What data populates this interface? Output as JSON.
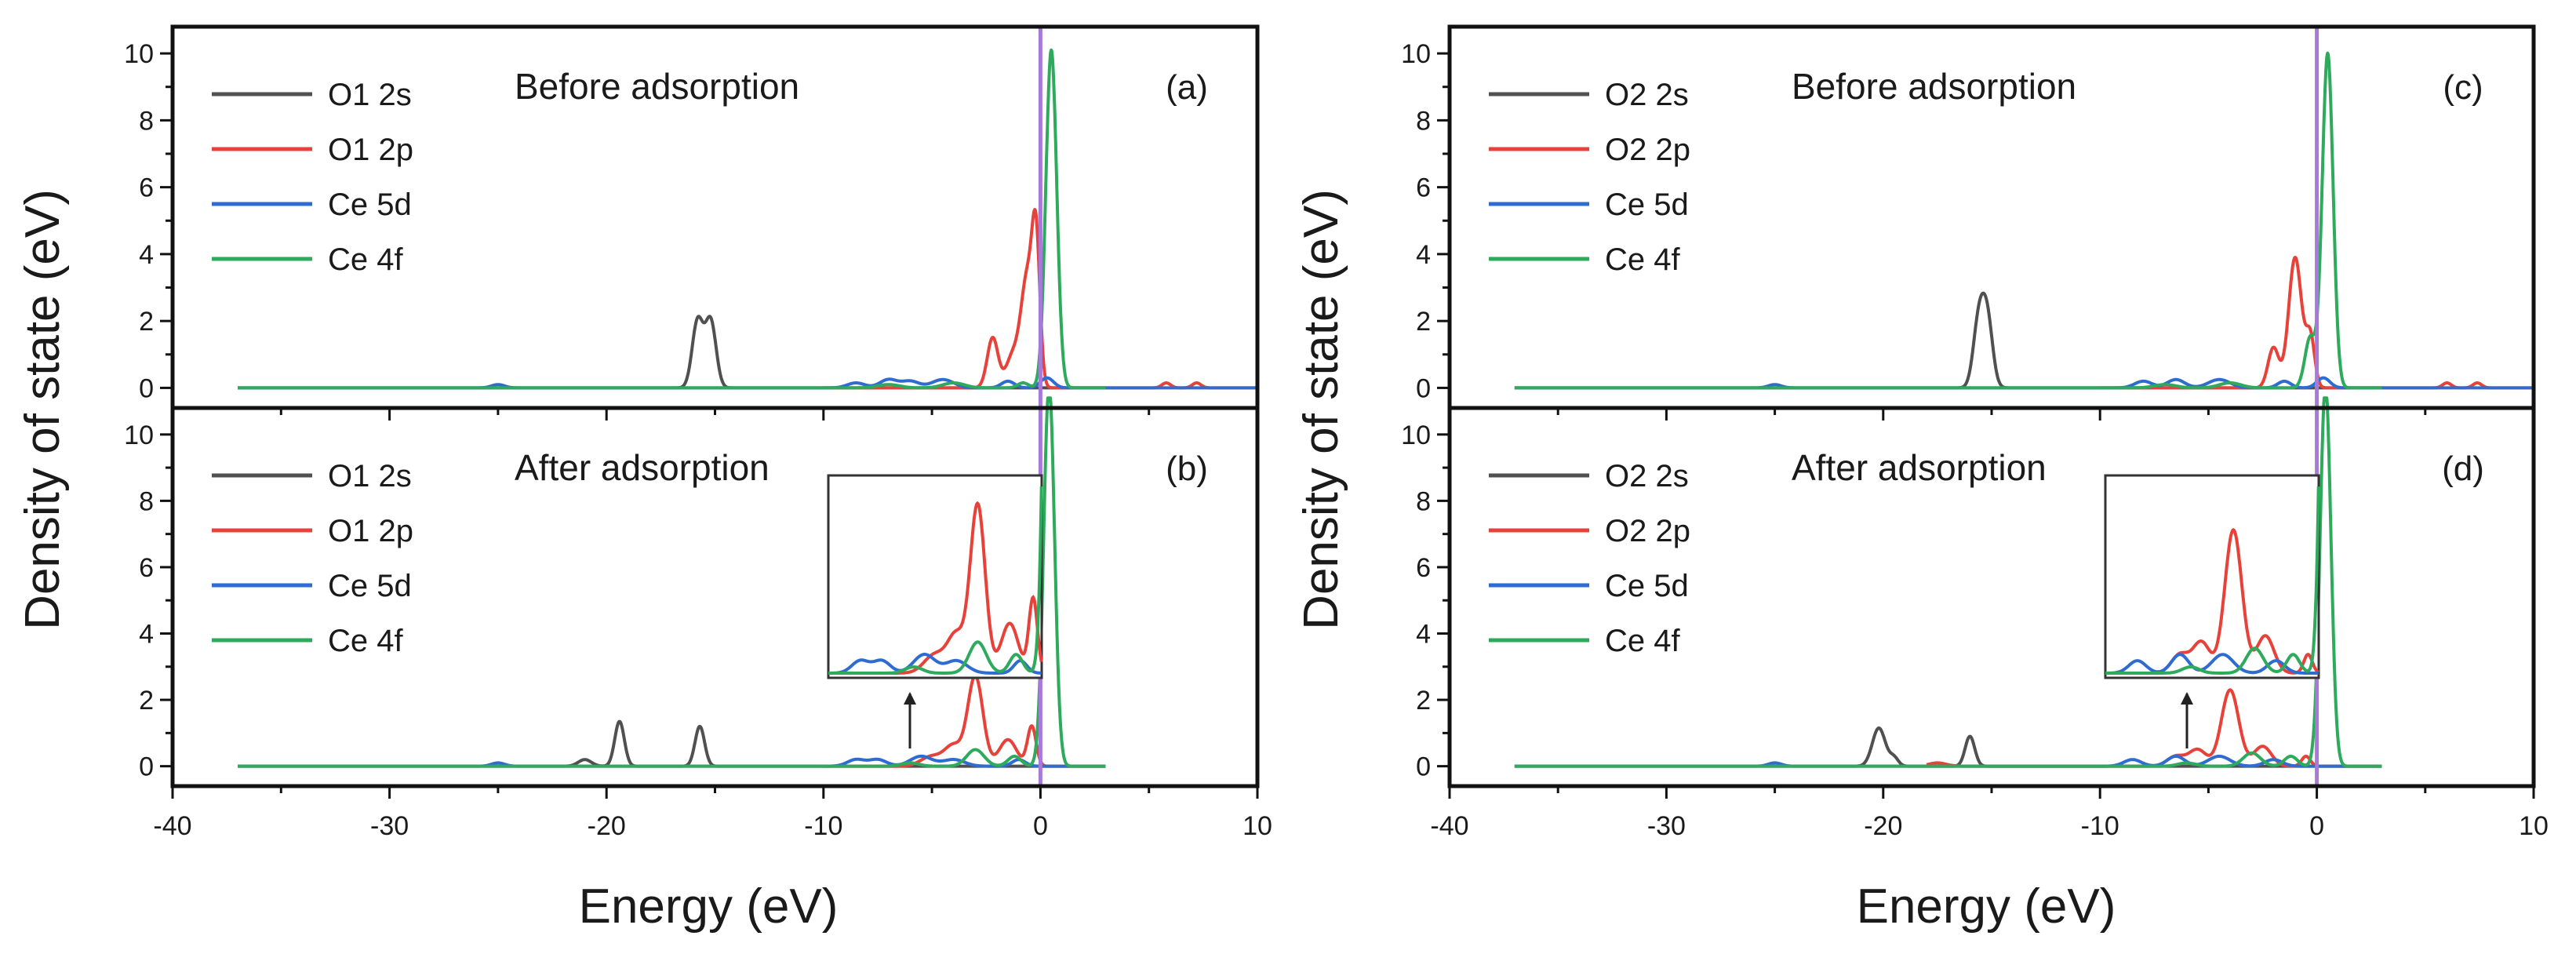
{
  "figure": {
    "xlabel_left": "Energy (eV)",
    "xlabel_right": "Energy (eV)",
    "ylabel_left": "Density of state (eV)",
    "ylabel_right": "Density of state (eV)"
  },
  "chart_data": [
    {
      "panel": "(a)",
      "type": "line",
      "note": "Before adsorption",
      "xlim": [
        -40,
        10
      ],
      "ylim": [
        -0.6,
        10.8
      ],
      "xticks": [
        "-40",
        "-30",
        "-20",
        "-10",
        "0",
        "10"
      ],
      "yticks": [
        "0",
        "2",
        "4",
        "6",
        "8",
        "10"
      ],
      "fermi_level": 0,
      "fermi_color": "#a779d8",
      "series": [
        {
          "name": "O1 2s",
          "color": "#505050",
          "baseline_range": [
            -37,
            3
          ],
          "peaks": [
            [
              -15.8,
              2.0,
              0.25
            ],
            [
              -15.2,
              2.0,
              0.25
            ]
          ]
        },
        {
          "name": "O1 2p",
          "color": "#e8413a",
          "baseline_range": [
            -10,
            10
          ],
          "peaks": [
            [
              -2.2,
              1.5,
              0.25
            ],
            [
              -1.3,
              0.9,
              0.3
            ],
            [
              -0.6,
              3.3,
              0.3
            ],
            [
              -0.2,
              3.8,
              0.18
            ],
            [
              5.8,
              0.15,
              0.2
            ],
            [
              7.2,
              0.15,
              0.2
            ]
          ]
        },
        {
          "name": "Ce 5d",
          "color": "#2f6cd1",
          "baseline_range": [
            -37,
            10
          ],
          "peaks": [
            [
              -25,
              0.1,
              0.3
            ],
            [
              -8.5,
              0.15,
              0.4
            ],
            [
              -7,
              0.25,
              0.4
            ],
            [
              -6,
              0.2,
              0.4
            ],
            [
              -4.5,
              0.25,
              0.5
            ],
            [
              -1.5,
              0.2,
              0.3
            ],
            [
              0.3,
              0.3,
              0.3
            ]
          ]
        },
        {
          "name": "Ce 4f",
          "color": "#2eaa5c",
          "baseline_range": [
            -37,
            3
          ],
          "peaks": [
            [
              -7,
              0.1,
              0.5
            ],
            [
              -4,
              0.15,
              0.5
            ],
            [
              -0.8,
              0.15,
              0.25
            ],
            [
              0.5,
              10.1,
              0.25
            ]
          ]
        }
      ]
    },
    {
      "panel": "(b)",
      "type": "line",
      "note": "After adsorption",
      "xlim": [
        -40,
        10
      ],
      "ylim": [
        -0.6,
        10.8
      ],
      "xticks": [
        "-40",
        "-30",
        "-20",
        "-10",
        "0",
        "10"
      ],
      "yticks": [
        "0",
        "2",
        "4",
        "6",
        "8",
        "10"
      ],
      "fermi_level": 0,
      "fermi_color": "#a779d8",
      "inset": true,
      "series": [
        {
          "name": "O1 2s",
          "color": "#505050",
          "baseline_range": [
            -37,
            3
          ],
          "peaks": [
            [
              -21,
              0.2,
              0.3
            ],
            [
              -19.4,
              1.35,
              0.22
            ],
            [
              -15.7,
              1.2,
              0.22
            ]
          ]
        },
        {
          "name": "O1 2p",
          "color": "#e8413a",
          "baseline_range": [
            -10,
            3
          ],
          "peaks": [
            [
              -5,
              0.3,
              0.5
            ],
            [
              -4,
              0.6,
              0.4
            ],
            [
              -3,
              2.7,
              0.35
            ],
            [
              -1.5,
              0.8,
              0.4
            ],
            [
              -0.4,
              1.2,
              0.2
            ]
          ]
        },
        {
          "name": "Ce 5d",
          "color": "#2f6cd1",
          "baseline_range": [
            -37,
            3
          ],
          "peaks": [
            [
              -25,
              0.1,
              0.3
            ],
            [
              -8.5,
              0.2,
              0.4
            ],
            [
              -7.5,
              0.2,
              0.4
            ],
            [
              -5.5,
              0.3,
              0.5
            ],
            [
              -4,
              0.2,
              0.5
            ],
            [
              -1,
              0.2,
              0.3
            ]
          ]
        },
        {
          "name": "Ce 4f",
          "color": "#2eaa5c",
          "baseline_range": [
            -37,
            3
          ],
          "peaks": [
            [
              -6,
              0.1,
              0.4
            ],
            [
              -3,
              0.5,
              0.4
            ],
            [
              -1.2,
              0.3,
              0.3
            ],
            [
              0.4,
              11.5,
              0.25
            ]
          ]
        }
      ]
    },
    {
      "panel": "(c)",
      "type": "line",
      "note": "Before adsorption",
      "xlim": [
        -40,
        10
      ],
      "ylim": [
        -0.6,
        10.8
      ],
      "xticks": [
        "-40",
        "-30",
        "-20",
        "-10",
        "0",
        "10"
      ],
      "yticks": [
        "0",
        "2",
        "4",
        "6",
        "8",
        "10"
      ],
      "fermi_level": 0,
      "fermi_color": "#a779d8",
      "series": [
        {
          "name": "O2 2s",
          "color": "#505050",
          "baseline_range": [
            -37,
            3
          ],
          "peaks": [
            [
              -15.6,
              1.9,
              0.25
            ],
            [
              -15.2,
              2.0,
              0.25
            ]
          ]
        },
        {
          "name": "O2 2p",
          "color": "#e8413a",
          "baseline_range": [
            -10,
            10
          ],
          "peaks": [
            [
              -2.0,
              1.2,
              0.25
            ],
            [
              -1.0,
              3.9,
              0.3
            ],
            [
              -0.3,
              1.5,
              0.2
            ],
            [
              6.0,
              0.15,
              0.2
            ],
            [
              7.4,
              0.15,
              0.2
            ]
          ]
        },
        {
          "name": "Ce 5d",
          "color": "#2f6cd1",
          "baseline_range": [
            -37,
            10
          ],
          "peaks": [
            [
              -25,
              0.1,
              0.3
            ],
            [
              -8,
              0.2,
              0.4
            ],
            [
              -6.5,
              0.25,
              0.4
            ],
            [
              -4.5,
              0.25,
              0.5
            ],
            [
              -1.5,
              0.2,
              0.3
            ],
            [
              0.3,
              0.3,
              0.3
            ]
          ]
        },
        {
          "name": "Ce 4f",
          "color": "#2eaa5c",
          "baseline_range": [
            -37,
            3
          ],
          "peaks": [
            [
              -7,
              0.1,
              0.5
            ],
            [
              -4,
              0.15,
              0.5
            ],
            [
              -0.3,
              1.5,
              0.25
            ],
            [
              0.5,
              10.0,
              0.25
            ]
          ]
        }
      ]
    },
    {
      "panel": "(d)",
      "type": "line",
      "note": "After adsorption",
      "xlim": [
        -40,
        10
      ],
      "ylim": [
        -0.6,
        10.8
      ],
      "xticks": [
        "-40",
        "-30",
        "-20",
        "-10",
        "0",
        "10"
      ],
      "yticks": [
        "0",
        "2",
        "4",
        "6",
        "8",
        "10"
      ],
      "fermi_level": 0,
      "fermi_color": "#a779d8",
      "inset": true,
      "series": [
        {
          "name": "O2 2s",
          "color": "#505050",
          "baseline_range": [
            -37,
            3
          ],
          "peaks": [
            [
              -20.2,
              1.15,
              0.3
            ],
            [
              -19.5,
              0.25,
              0.2
            ],
            [
              -16.0,
              0.9,
              0.22
            ]
          ]
        },
        {
          "name": "O2 2p",
          "color": "#e8413a",
          "baseline_range": [
            -18,
            3
          ],
          "peaks": [
            [
              -17.5,
              0.1,
              0.4
            ],
            [
              -6.5,
              0.3,
              0.4
            ],
            [
              -5.5,
              0.5,
              0.4
            ],
            [
              -4.0,
              2.3,
              0.4
            ],
            [
              -2.5,
              0.6,
              0.4
            ],
            [
              -0.5,
              0.3,
              0.2
            ]
          ]
        },
        {
          "name": "Ce 5d",
          "color": "#2f6cd1",
          "baseline_range": [
            -37,
            3
          ],
          "peaks": [
            [
              -25,
              0.1,
              0.3
            ],
            [
              -8.5,
              0.2,
              0.4
            ],
            [
              -6.5,
              0.3,
              0.4
            ],
            [
              -4.5,
              0.3,
              0.5
            ],
            [
              -2,
              0.2,
              0.4
            ]
          ]
        },
        {
          "name": "Ce 4f",
          "color": "#2eaa5c",
          "baseline_range": [
            -37,
            3
          ],
          "peaks": [
            [
              -6,
              0.1,
              0.4
            ],
            [
              -3,
              0.4,
              0.4
            ],
            [
              -1.2,
              0.3,
              0.3
            ],
            [
              0.4,
              11.5,
              0.25
            ]
          ]
        }
      ]
    }
  ]
}
